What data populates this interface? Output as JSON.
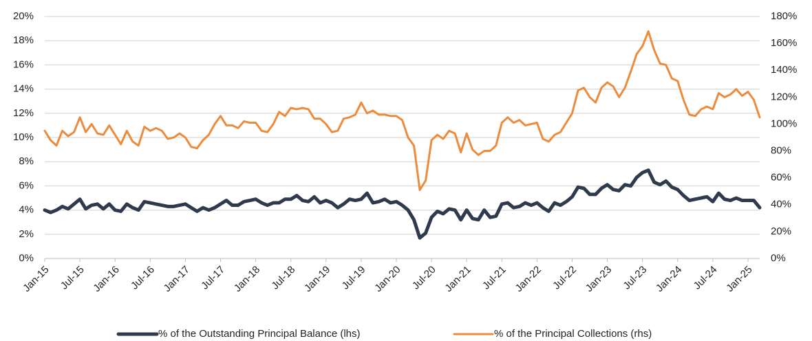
{
  "chart_data": {
    "type": "line",
    "categories": [
      "Jan-15",
      null,
      null,
      null,
      null,
      null,
      "Jul-15",
      null,
      null,
      null,
      null,
      null,
      "Jan-16",
      null,
      null,
      null,
      null,
      null,
      "Jul-16",
      null,
      null,
      null,
      null,
      null,
      "Jan-17",
      null,
      null,
      null,
      null,
      null,
      "Jul-17",
      null,
      null,
      null,
      null,
      null,
      "Jan-18",
      null,
      null,
      null,
      null,
      null,
      "Jul-18",
      null,
      null,
      null,
      null,
      null,
      "Jan-19",
      null,
      null,
      null,
      null,
      null,
      "Jul-19",
      null,
      null,
      null,
      null,
      null,
      "Jan-20",
      null,
      null,
      null,
      null,
      null,
      "Jul-20",
      null,
      null,
      null,
      null,
      null,
      "Jan-21",
      null,
      null,
      null,
      null,
      null,
      "Jul-21",
      null,
      null,
      null,
      null,
      null,
      "Jan-22",
      null,
      null,
      null,
      null,
      null,
      "Jul-22",
      null,
      null,
      null,
      null,
      null,
      "Jan-23",
      null,
      null,
      null,
      null,
      null,
      "Jul-23",
      null,
      null,
      null,
      null,
      null,
      "Jan-24",
      null,
      null,
      null,
      null,
      null,
      "Jul-24",
      null,
      null,
      null,
      null,
      null,
      "Jan-25",
      null,
      null
    ],
    "series": [
      {
        "name": "% of the Outstanding Principal Balance (lhs)",
        "color": "#2f3b4c",
        "axis": "y",
        "values": [
          4.0,
          3.8,
          4.0,
          4.3,
          4.1,
          4.5,
          4.9,
          4.1,
          4.4,
          4.5,
          4.1,
          4.5,
          4.0,
          3.9,
          4.5,
          4.2,
          4.0,
          4.7,
          4.6,
          4.5,
          4.4,
          4.3,
          4.3,
          4.4,
          4.5,
          4.2,
          3.9,
          4.2,
          4.0,
          4.2,
          4.5,
          4.8,
          4.4,
          4.4,
          4.7,
          4.8,
          4.9,
          4.6,
          4.4,
          4.6,
          4.6,
          4.9,
          4.9,
          5.2,
          4.8,
          4.7,
          5.1,
          4.6,
          4.8,
          4.6,
          4.2,
          4.5,
          4.9,
          4.8,
          4.9,
          5.4,
          4.6,
          4.7,
          4.9,
          4.6,
          4.7,
          4.4,
          4.0,
          3.2,
          1.7,
          2.1,
          3.4,
          3.9,
          3.7,
          4.1,
          4.0,
          3.2,
          4.0,
          3.3,
          3.2,
          4.0,
          3.4,
          3.5,
          4.5,
          4.6,
          4.2,
          4.3,
          4.6,
          4.4,
          4.6,
          4.2,
          3.9,
          4.6,
          4.4,
          4.7,
          5.1,
          5.9,
          5.8,
          5.3,
          5.3,
          5.8,
          6.1,
          5.7,
          5.6,
          6.1,
          6.0,
          6.7,
          7.1,
          7.3,
          6.3,
          6.1,
          6.4,
          5.9,
          5.7,
          5.2,
          4.8,
          4.9,
          5.0,
          5.1,
          4.7,
          5.4,
          4.9,
          4.8,
          5.0,
          4.8,
          4.8,
          4.8,
          4.2
        ]
      },
      {
        "name": "% of the Principal Collections (rhs)",
        "color": "#ed8b3d",
        "axis": "y2",
        "values": [
          95,
          88,
          84,
          95,
          91,
          94,
          105,
          94,
          100,
          93,
          92,
          99,
          92,
          85,
          95,
          87,
          84,
          98,
          95,
          97,
          95,
          89,
          90,
          93,
          90,
          83,
          82,
          88,
          92,
          100,
          106,
          99,
          99,
          97,
          102,
          101,
          101,
          95,
          94,
          100,
          109,
          106,
          112,
          111,
          112,
          111,
          104,
          104,
          100,
          94,
          95,
          104,
          105,
          107,
          116,
          108,
          110,
          107,
          107,
          106,
          106,
          103,
          90,
          84,
          51,
          58,
          88,
          92,
          89,
          95,
          93,
          79,
          93,
          81,
          77,
          80,
          80,
          84,
          101,
          105,
          101,
          103,
          99,
          100,
          101,
          89,
          87,
          92,
          94,
          101,
          108,
          125,
          127,
          120,
          116,
          127,
          131,
          128,
          120,
          127,
          139,
          152,
          158,
          169,
          155,
          145,
          144,
          134,
          132,
          118,
          107,
          106,
          111,
          113,
          111,
          123,
          120,
          122,
          126,
          121,
          124,
          118,
          105
        ]
      }
    ],
    "ylim": [
      0,
      20
    ],
    "yticks": [
      {
        "value": 0,
        "label": "0%"
      },
      {
        "value": 2,
        "label": "2%"
      },
      {
        "value": 4,
        "label": "4%"
      },
      {
        "value": 6,
        "label": "6%"
      },
      {
        "value": 8,
        "label": "8%"
      },
      {
        "value": 10,
        "label": "10%"
      },
      {
        "value": 12,
        "label": "12%"
      },
      {
        "value": 14,
        "label": "14%"
      },
      {
        "value": 16,
        "label": "16%"
      },
      {
        "value": 18,
        "label": "18%"
      },
      {
        "value": 20,
        "label": "20%"
      }
    ],
    "y2lim": [
      0,
      180
    ],
    "y2ticks": [
      {
        "value": 0,
        "label": "0%"
      },
      {
        "value": 20,
        "label": "20%"
      },
      {
        "value": 40,
        "label": "40%"
      },
      {
        "value": 60,
        "label": "60%"
      },
      {
        "value": 80,
        "label": "80%"
      },
      {
        "value": 100,
        "label": "100%"
      },
      {
        "value": 120,
        "label": "120%"
      },
      {
        "value": 140,
        "label": "140%"
      },
      {
        "value": 160,
        "label": "160%"
      },
      {
        "value": 180,
        "label": "180%"
      }
    ],
    "grid": true,
    "legend": "bottom"
  }
}
